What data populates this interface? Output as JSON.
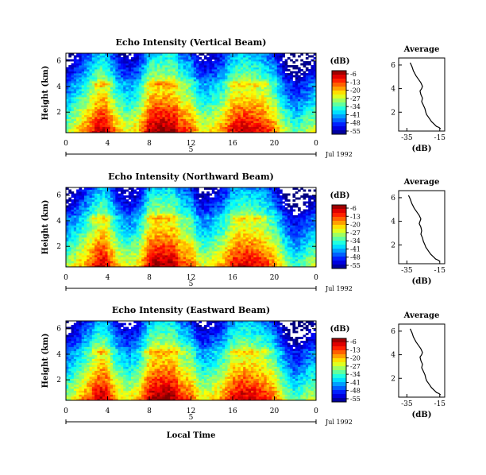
{
  "chart_data": [
    {
      "type": "heatmap",
      "title": "Echo Intensity (Vertical Beam)",
      "ylabel": "Height (km)",
      "yticks": [
        "2",
        "4",
        "6"
      ],
      "ylim": [
        0.4,
        6.6
      ],
      "xticks": [
        "0",
        "4",
        "8",
        "12",
        "16",
        "20",
        "0"
      ],
      "xlim": [
        0,
        24
      ],
      "day_label": "5",
      "date_label": "Jul 1992",
      "colorbar": {
        "unit": "(dB)",
        "ticks": [
          "-6",
          "-13",
          "-20",
          "-27",
          "-34",
          "-41",
          "-48",
          "-55"
        ],
        "range": [
          -55,
          -6
        ]
      },
      "intensity_hours": [
        0,
        1,
        2,
        3,
        3.5,
        4,
        5,
        6,
        7,
        8,
        8.5,
        9,
        9.5,
        10,
        10.5,
        11,
        12,
        13,
        14,
        15,
        16,
        17,
        18,
        19,
        20,
        21,
        22,
        23,
        24
      ],
      "intensity_peak_db": [
        -30,
        -24,
        -18,
        -11,
        -9,
        -12,
        -22,
        -26,
        -22,
        -10,
        -8,
        -8,
        -8,
        -8,
        -9,
        -14,
        -16,
        -26,
        -24,
        -20,
        -12,
        -10,
        -11,
        -13,
        -18,
        -28,
        -34,
        -30,
        -26
      ]
    },
    {
      "type": "heatmap",
      "title": "Echo Intensity (Northward Beam)",
      "ylabel": "Height (km)",
      "yticks": [
        "2",
        "4",
        "6"
      ],
      "ylim": [
        0.4,
        6.6
      ],
      "xticks": [
        "0",
        "4",
        "8",
        "12",
        "16",
        "20",
        "0"
      ],
      "xlim": [
        0,
        24
      ],
      "day_label": "5",
      "date_label": "Jul 1992",
      "colorbar": {
        "unit": "(dB)",
        "ticks": [
          "-6",
          "-13",
          "-20",
          "-27",
          "-34",
          "-41",
          "-48",
          "-55"
        ],
        "range": [
          -55,
          -6
        ]
      },
      "intensity_hours": [
        0,
        1,
        2,
        3,
        3.5,
        4,
        5,
        6,
        7,
        8,
        8.5,
        9,
        9.5,
        10,
        10.5,
        11,
        12,
        13,
        14,
        15,
        16,
        17,
        18,
        19,
        20,
        21,
        22,
        23,
        24
      ],
      "intensity_peak_db": [
        -30,
        -25,
        -19,
        -12,
        -10,
        -13,
        -23,
        -27,
        -23,
        -11,
        -9,
        -9,
        -9,
        -9,
        -10,
        -15,
        -17,
        -27,
        -25,
        -21,
        -13,
        -11,
        -12,
        -14,
        -19,
        -29,
        -35,
        -31,
        -27
      ]
    },
    {
      "type": "heatmap",
      "title": "Echo Intensity (Eastward Beam)",
      "ylabel": "Height (km)",
      "yticks": [
        "2",
        "4",
        "6"
      ],
      "ylim": [
        0.4,
        6.6
      ],
      "xticks": [
        "0",
        "4",
        "8",
        "12",
        "16",
        "20",
        "0"
      ],
      "xlim": [
        0,
        24
      ],
      "day_label": "5",
      "date_label": "Jul 1992",
      "xlabel": "Local Time",
      "colorbar": {
        "unit": "(dB)",
        "ticks": [
          "-6",
          "-13",
          "-20",
          "-27",
          "-34",
          "-41",
          "-48",
          "-55"
        ],
        "range": [
          -55,
          -6
        ]
      },
      "intensity_hours": [
        0,
        1,
        2,
        3,
        3.5,
        4,
        5,
        6,
        7,
        8,
        8.5,
        9,
        9.5,
        10,
        10.5,
        11,
        12,
        13,
        14,
        15,
        16,
        17,
        18,
        19,
        20,
        21,
        22,
        23,
        24
      ],
      "intensity_peak_db": [
        -30,
        -24,
        -18,
        -11,
        -9,
        -12,
        -22,
        -26,
        -22,
        -10,
        -8,
        -8,
        -8,
        -8,
        -9,
        -14,
        -16,
        -26,
        -24,
        -20,
        -12,
        -10,
        -11,
        -13,
        -18,
        -28,
        -34,
        -30,
        -26
      ]
    },
    {
      "type": "line",
      "title": "Average",
      "xlabel": "(dB)",
      "ylabel": "",
      "xticks": [
        "-35",
        "-15"
      ],
      "yticks": [
        "2",
        "4",
        "6"
      ],
      "xlim": [
        -40,
        -12
      ],
      "ylim": [
        0.4,
        6.6
      ],
      "x": [
        -33,
        -32,
        -31,
        -29.5,
        -28,
        -26.5,
        -25.5,
        -26,
        -27,
        -26.5,
        -25.5,
        -26,
        -25,
        -24,
        -23.5,
        -23,
        -22,
        -21,
        -20,
        -18.5,
        -17,
        -15.5,
        -14.5
      ],
      "y": [
        6.2,
        5.9,
        5.5,
        5.1,
        4.8,
        4.5,
        4.2,
        4.0,
        3.8,
        3.5,
        3.2,
        2.9,
        2.6,
        2.3,
        2.0,
        1.8,
        1.6,
        1.4,
        1.2,
        1.0,
        0.8,
        0.7,
        0.6
      ]
    },
    {
      "type": "line",
      "title": "Average",
      "xlabel": "(dB)",
      "ylabel": "",
      "xticks": [
        "-35",
        "-15"
      ],
      "yticks": [
        "2",
        "4",
        "6"
      ],
      "xlim": [
        -40,
        -12
      ],
      "ylim": [
        0.4,
        6.6
      ],
      "x": [
        -34,
        -33,
        -32,
        -30.5,
        -29,
        -27.5,
        -26.5,
        -27,
        -27.5,
        -26.5,
        -26,
        -26.5,
        -25.5,
        -25,
        -24,
        -23.5,
        -22.5,
        -21.5,
        -20.5,
        -19,
        -17.5,
        -16,
        -15
      ],
      "y": [
        6.2,
        5.9,
        5.5,
        5.1,
        4.8,
        4.5,
        4.2,
        4.0,
        3.8,
        3.5,
        3.2,
        2.9,
        2.6,
        2.3,
        2.0,
        1.8,
        1.6,
        1.4,
        1.2,
        1.0,
        0.8,
        0.7,
        0.6
      ]
    },
    {
      "type": "line",
      "title": "Average",
      "xlabel": "(dB)",
      "ylabel": "",
      "xticks": [
        "-35",
        "-15"
      ],
      "yticks": [
        "2",
        "4",
        "6"
      ],
      "xlim": [
        -40,
        -12
      ],
      "ylim": [
        0.4,
        6.6
      ],
      "x": [
        -33,
        -32,
        -31,
        -29.5,
        -28,
        -26.5,
        -25.5,
        -26,
        -27,
        -26.5,
        -25.5,
        -26,
        -25,
        -24,
        -23.5,
        -23,
        -22,
        -21,
        -20,
        -18.5,
        -17,
        -15.5,
        -14.5
      ],
      "y": [
        6.2,
        5.9,
        5.5,
        5.1,
        4.8,
        4.5,
        4.2,
        4.0,
        3.8,
        3.5,
        3.2,
        2.9,
        2.6,
        2.3,
        2.0,
        1.8,
        1.6,
        1.4,
        1.2,
        1.0,
        0.8,
        0.7,
        0.6
      ]
    }
  ]
}
